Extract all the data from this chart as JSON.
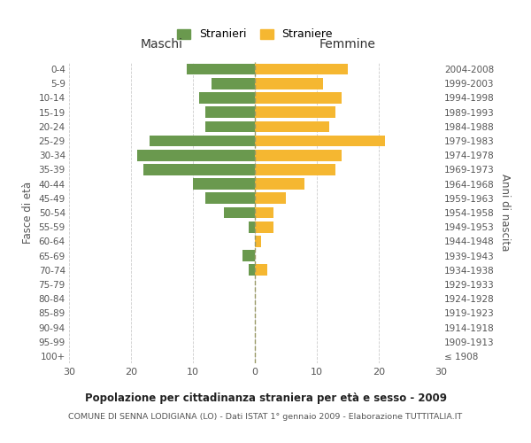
{
  "age_groups": [
    "100+",
    "95-99",
    "90-94",
    "85-89",
    "80-84",
    "75-79",
    "70-74",
    "65-69",
    "60-64",
    "55-59",
    "50-54",
    "45-49",
    "40-44",
    "35-39",
    "30-34",
    "25-29",
    "20-24",
    "15-19",
    "10-14",
    "5-9",
    "0-4"
  ],
  "birth_years": [
    "≤ 1908",
    "1909-1913",
    "1914-1918",
    "1919-1923",
    "1924-1928",
    "1929-1933",
    "1934-1938",
    "1939-1943",
    "1944-1948",
    "1949-1953",
    "1954-1958",
    "1959-1963",
    "1964-1968",
    "1969-1973",
    "1974-1978",
    "1979-1983",
    "1984-1988",
    "1989-1993",
    "1994-1998",
    "1999-2003",
    "2004-2008"
  ],
  "males": [
    0,
    0,
    0,
    0,
    0,
    0,
    1,
    2,
    0,
    1,
    5,
    8,
    10,
    18,
    19,
    17,
    8,
    8,
    9,
    7,
    11
  ],
  "females": [
    0,
    0,
    0,
    0,
    0,
    0,
    2,
    0,
    1,
    3,
    3,
    5,
    8,
    13,
    14,
    21,
    12,
    13,
    14,
    11,
    15
  ],
  "male_color": "#6a994e",
  "female_color": "#f5b731",
  "center_line_color": "#999966",
  "grid_color": "#cccccc",
  "background_color": "#ffffff",
  "title": "Popolazione per cittadinanza straniera per età e sesso - 2009",
  "subtitle": "COMUNE DI SENNA LODIGIANA (LO) - Dati ISTAT 1° gennaio 2009 - Elaborazione TUTTITALIA.IT",
  "ylabel_left": "Fasce di età",
  "ylabel_right": "Anni di nascita",
  "xlabel_left": "Maschi",
  "xlabel_right": "Femmine",
  "legend_males": "Stranieri",
  "legend_females": "Straniere",
  "xlim": 30
}
